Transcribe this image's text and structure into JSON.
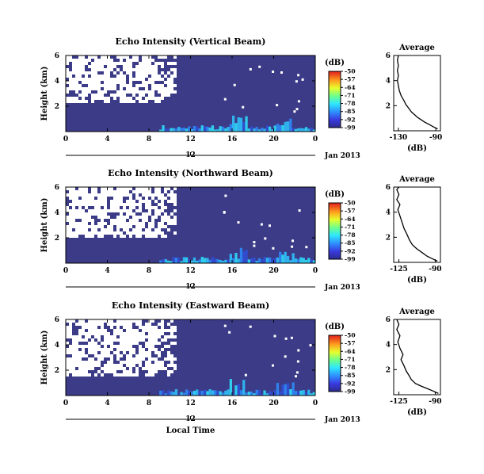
{
  "chart_data": [
    {
      "type": "heatmap",
      "title": "Echo Intensity (Vertical Beam)",
      "ylabel": "Height (km)",
      "colorbar_label": "(dB)",
      "x_ticks": [
        "0",
        "4",
        "8",
        "12",
        "16",
        "20",
        "0"
      ],
      "x_range": [
        0,
        24
      ],
      "y_ticks": [
        "2",
        "4",
        "6"
      ],
      "y_range": [
        0,
        6
      ],
      "date_row_tick": "12",
      "date_label": "Jan 2013",
      "colorbar_ticks": [
        "-50",
        "-57",
        "-64",
        "-71",
        "-78",
        "-85",
        "-92",
        "-99"
      ],
      "colorbar_range": [
        -99,
        -50
      ],
      "blank_region": {
        "x": [
          0,
          10.5
        ],
        "y": [
          2.3,
          6
        ]
      },
      "profile": {
        "title": "Average",
        "xlabel": "(dB)",
        "x_ticks": [
          "-130",
          "-90"
        ],
        "x_range": [
          -135,
          -85
        ],
        "y_ticks": [
          "2",
          "4",
          "6"
        ],
        "y_range": [
          0,
          6
        ],
        "points": [
          [
            -88,
            0.15
          ],
          [
            -92,
            0.3
          ],
          [
            -97,
            0.5
          ],
          [
            -102,
            0.7
          ],
          [
            -106,
            0.9
          ],
          [
            -110,
            1.1
          ],
          [
            -113,
            1.3
          ],
          [
            -116,
            1.5
          ],
          [
            -118,
            1.7
          ],
          [
            -120,
            1.9
          ],
          [
            -122,
            2.1
          ],
          [
            -124,
            2.4
          ],
          [
            -127,
            2.8
          ],
          [
            -129,
            3.2
          ],
          [
            -130,
            3.6
          ],
          [
            -131,
            4.0
          ],
          [
            -130,
            4.4
          ],
          [
            -131,
            4.8
          ],
          [
            -130,
            5.2
          ],
          [
            -131,
            5.6
          ],
          [
            -130,
            6.0
          ]
        ]
      }
    },
    {
      "type": "heatmap",
      "title": "Echo Intensity (Northward Beam)",
      "ylabel": "Height (km)",
      "colorbar_label": "(dB)",
      "x_ticks": [
        "0",
        "4",
        "8",
        "12",
        "16",
        "20",
        "0"
      ],
      "x_range": [
        0,
        24
      ],
      "y_ticks": [
        "2",
        "4",
        "6"
      ],
      "y_range": [
        0,
        6
      ],
      "date_row_tick": "12",
      "date_label": "Jan 2013",
      "colorbar_ticks": [
        "-50",
        "-57",
        "-64",
        "-71",
        "-78",
        "-85",
        "-92",
        "-99"
      ],
      "colorbar_range": [
        -99,
        -50
      ],
      "blank_region": {
        "x": [
          0,
          10.5
        ],
        "y": [
          2.0,
          6
        ]
      },
      "profile": {
        "title": "Average",
        "xlabel": "(dB)",
        "x_ticks": [
          "-125",
          "-90"
        ],
        "x_range": [
          -130,
          -85
        ],
        "y_ticks": [
          "2",
          "4",
          "6"
        ],
        "y_range": [
          0,
          6
        ],
        "points": [
          [
            -88,
            0.1
          ],
          [
            -93,
            0.3
          ],
          [
            -98,
            0.5
          ],
          [
            -103,
            0.8
          ],
          [
            -108,
            1.1
          ],
          [
            -112,
            1.4
          ],
          [
            -115,
            1.8
          ],
          [
            -117,
            2.2
          ],
          [
            -120,
            2.7
          ],
          [
            -122,
            3.2
          ],
          [
            -124,
            3.7
          ],
          [
            -126,
            4.2
          ],
          [
            -124,
            4.6
          ],
          [
            -127,
            5.0
          ],
          [
            -125,
            5.4
          ],
          [
            -127,
            5.8
          ],
          [
            -125,
            6.0
          ]
        ]
      }
    },
    {
      "type": "heatmap",
      "title": "Echo Intensity (Eastward Beam)",
      "ylabel": "Height (km)",
      "xlabel": "Local Time",
      "colorbar_label": "(dB)",
      "x_ticks": [
        "0",
        "4",
        "8",
        "12",
        "16",
        "20",
        "0"
      ],
      "x_range": [
        0,
        24
      ],
      "y_ticks": [
        "2",
        "4",
        "6"
      ],
      "y_range": [
        0,
        6
      ],
      "date_row_tick": "12",
      "date_label": "Jan 2013",
      "colorbar_ticks": [
        "-50",
        "-57",
        "-64",
        "-71",
        "-78",
        "-85",
        "-92",
        "-99"
      ],
      "colorbar_range": [
        -99,
        -50
      ],
      "blank_region": {
        "x": [
          0,
          10.5
        ],
        "y": [
          1.5,
          6
        ]
      },
      "profile": {
        "title": "Average",
        "xlabel": "(dB)",
        "x_ticks": [
          "-125",
          "-90"
        ],
        "x_range": [
          -130,
          -85
        ],
        "y_ticks": [
          "2",
          "4",
          "6"
        ],
        "y_range": [
          0,
          6
        ],
        "points": [
          [
            -87,
            0.1
          ],
          [
            -92,
            0.3
          ],
          [
            -98,
            0.5
          ],
          [
            -104,
            0.7
          ],
          [
            -109,
            0.9
          ],
          [
            -113,
            1.2
          ],
          [
            -115,
            1.5
          ],
          [
            -118,
            1.9
          ],
          [
            -120,
            2.3
          ],
          [
            -123,
            2.8
          ],
          [
            -121,
            3.2
          ],
          [
            -124,
            3.7
          ],
          [
            -126,
            4.2
          ],
          [
            -124,
            4.7
          ],
          [
            -127,
            5.2
          ],
          [
            -125,
            5.6
          ],
          [
            -127,
            6.0
          ]
        ]
      }
    }
  ]
}
